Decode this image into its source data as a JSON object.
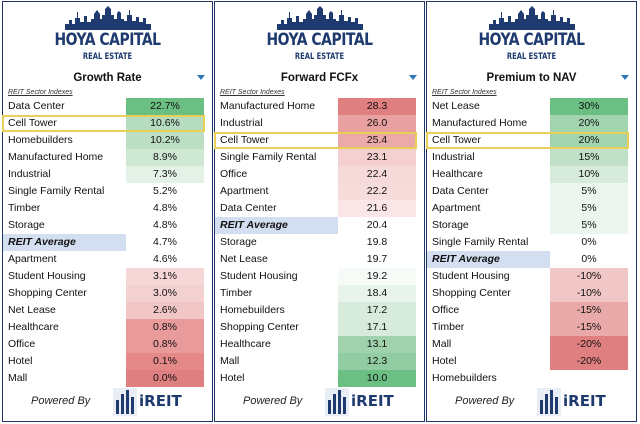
{
  "brand": {
    "logo_main": "HOYA CAPITAL",
    "logo_sub": "REAL ESTATE",
    "powered_by": "Powered By",
    "partner": "iREIT"
  },
  "subheader": "REIT Sector Indexes",
  "colors": {
    "navy": "#1e3a6e",
    "highlight": "#e8cf55",
    "avg_fill": "#d3dff0"
  },
  "panels": [
    {
      "title": "Growth Rate",
      "rows": [
        {
          "name": "Data Center",
          "value": "22.7%",
          "color": "#6bbf83"
        },
        {
          "name": "Cell Tower",
          "value": "10.6%",
          "color": "#b5dcbf",
          "highlight": true
        },
        {
          "name": "Homebuilders",
          "value": "10.2%",
          "color": "#bcdfc4"
        },
        {
          "name": "Manufactured Home",
          "value": "8.9%",
          "color": "#cfe8d4"
        },
        {
          "name": "Industrial",
          "value": "7.3%",
          "color": "#e3f1e6"
        },
        {
          "name": "Single Family Rental",
          "value": "5.2%",
          "color": "#ffffff"
        },
        {
          "name": "Timber",
          "value": "4.8%",
          "color": "#ffffff"
        },
        {
          "name": "Storage",
          "value": "4.8%",
          "color": "#ffffff"
        },
        {
          "name": "REIT Average",
          "value": "4.7%",
          "color": "#ffffff",
          "avg": true
        },
        {
          "name": "Apartment",
          "value": "4.6%",
          "color": "#ffffff"
        },
        {
          "name": "Student Housing",
          "value": "3.1%",
          "color": "#f6d6d6"
        },
        {
          "name": "Shopping Center",
          "value": "3.0%",
          "color": "#f4d1d1"
        },
        {
          "name": "Net Lease",
          "value": "2.6%",
          "color": "#f1c6c6"
        },
        {
          "name": "Healthcare",
          "value": "0.8%",
          "color": "#e99a9a"
        },
        {
          "name": "Office",
          "value": "0.8%",
          "color": "#e99a9a"
        },
        {
          "name": "Hotel",
          "value": "0.1%",
          "color": "#e48888"
        },
        {
          "name": "Mall",
          "value": "0.0%",
          "color": "#e07f7f"
        }
      ]
    },
    {
      "title": "Forward FCFx",
      "rows": [
        {
          "name": "Manufactured Home",
          "value": "28.3",
          "color": "#e07f7f"
        },
        {
          "name": "Industrial",
          "value": "26.0",
          "color": "#e8a0a0"
        },
        {
          "name": "Cell Tower",
          "value": "25.4",
          "color": "#eba9a9",
          "highlight": true
        },
        {
          "name": "Single Family Rental",
          "value": "23.1",
          "color": "#f4d0d0"
        },
        {
          "name": "Office",
          "value": "22.4",
          "color": "#f6d9d9"
        },
        {
          "name": "Apartment",
          "value": "22.2",
          "color": "#f7dcdc"
        },
        {
          "name": "Data Center",
          "value": "21.6",
          "color": "#fae6e6"
        },
        {
          "name": "REIT Average",
          "value": "20.4",
          "color": "#ffffff",
          "avg": true
        },
        {
          "name": "Storage",
          "value": "19.8",
          "color": "#ffffff"
        },
        {
          "name": "Net Lease",
          "value": "19.7",
          "color": "#ffffff"
        },
        {
          "name": "Student Housing",
          "value": "19.2",
          "color": "#f6fbf7"
        },
        {
          "name": "Timber",
          "value": "18.4",
          "color": "#e8f4eb"
        },
        {
          "name": "Homebuilders",
          "value": "17.2",
          "color": "#d8ecdd"
        },
        {
          "name": "Shopping Center",
          "value": "17.1",
          "color": "#d6ebdb"
        },
        {
          "name": "Healthcare",
          "value": "13.1",
          "color": "#9fd2ad"
        },
        {
          "name": "Mall",
          "value": "12.3",
          "color": "#92cca2"
        },
        {
          "name": "Hotel",
          "value": "10.0",
          "color": "#6bbf83"
        }
      ]
    },
    {
      "title": "Premium to NAV",
      "rows": [
        {
          "name": "Net Lease",
          "value": "30%",
          "color": "#6bbf83"
        },
        {
          "name": "Manufactured Home",
          "value": "20%",
          "color": "#a2d4b0"
        },
        {
          "name": "Cell Tower",
          "value": "20%",
          "color": "#a2d4b0",
          "highlight": true
        },
        {
          "name": "Industrial",
          "value": "15%",
          "color": "#c0e1c8"
        },
        {
          "name": "Healthcare",
          "value": "10%",
          "color": "#d6ebdb"
        },
        {
          "name": "Data Center",
          "value": "5%",
          "color": "#ecf6ee"
        },
        {
          "name": "Apartment",
          "value": "5%",
          "color": "#ecf6ee"
        },
        {
          "name": "Storage",
          "value": "5%",
          "color": "#ecf6ee"
        },
        {
          "name": "Single Family Rental",
          "value": "0%",
          "color": "#ffffff"
        },
        {
          "name": "REIT Average",
          "value": "0%",
          "color": "#ffffff",
          "avg": true
        },
        {
          "name": "Student Housing",
          "value": "-10%",
          "color": "#f1c6c6"
        },
        {
          "name": "Shopping Center",
          "value": "-10%",
          "color": "#f1c6c6"
        },
        {
          "name": "Office",
          "value": "-15%",
          "color": "#eaa9a9"
        },
        {
          "name": "Timber",
          "value": "-15%",
          "color": "#eaa9a9"
        },
        {
          "name": "Mall",
          "value": "-20%",
          "color": "#e07f7f"
        },
        {
          "name": "Hotel",
          "value": "-20%",
          "color": "#e07f7f"
        },
        {
          "name": "Homebuilders",
          "value": "",
          "color": "#ffffff"
        }
      ]
    }
  ]
}
